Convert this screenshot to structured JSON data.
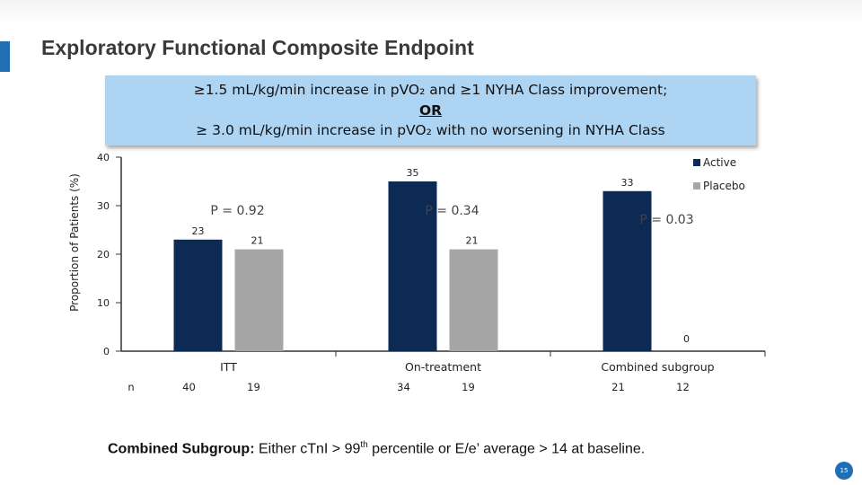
{
  "slide": {
    "title": "Exploratory Functional Composite Endpoint",
    "page_number": "15"
  },
  "definition": {
    "line1": "≥1.5 mL/kg/min increase in pVO₂ and ≥1 NYHA Class improvement;",
    "or": "OR",
    "line3": "≥ 3.0 mL/kg/min increase in pVO₂ with no worsening in NYHA Class"
  },
  "footnote": {
    "bold": "Combined Subgroup:",
    "text_before_sup": " Either cTnI > 99",
    "sup": "th",
    "text_after_sup": " percentile or E/e’ average > 14 at baseline."
  },
  "colors": {
    "active": "#0d2a54",
    "placebo": "#a6a6a6",
    "accent": "#1f6fb2",
    "definition_box": "#aed4f4"
  },
  "chart_data": {
    "type": "bar",
    "ylabel": "Proportion of Patients (%)",
    "ylim": [
      0,
      40
    ],
    "yticks": [
      "0",
      "10",
      "20",
      "30",
      "40"
    ],
    "categories": [
      "ITT",
      "On-treatment",
      "Combined subgroup"
    ],
    "series": [
      {
        "name": "Active",
        "values": [
          23,
          35,
          33
        ],
        "labels": [
          "23",
          "35",
          "33"
        ],
        "color": "#0d2a54"
      },
      {
        "name": "Placebo",
        "values": [
          21,
          21,
          0
        ],
        "labels": [
          "21",
          "21",
          "0"
        ],
        "color": "#a6a6a6"
      }
    ],
    "p_values": [
      "P = 0.92",
      "P = 0.34",
      "P = 0.03"
    ],
    "n_label": "n",
    "n_values": [
      [
        "40",
        "19"
      ],
      [
        "34",
        "19"
      ],
      [
        "21",
        "12"
      ]
    ],
    "legend_position": "top-right",
    "grid": false
  }
}
